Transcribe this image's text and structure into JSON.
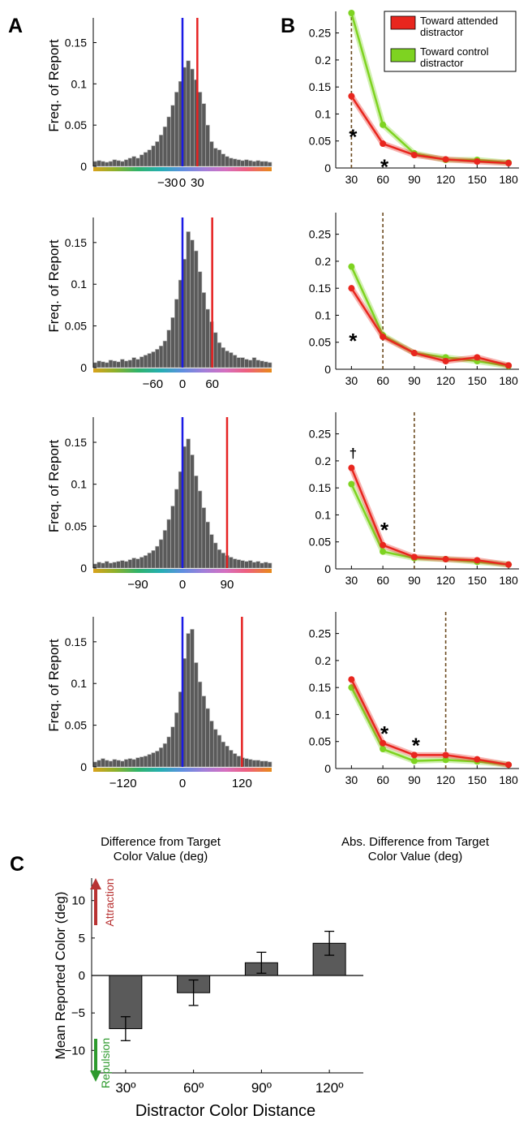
{
  "panels": {
    "A": {
      "letter": "A",
      "ylabel": "Freq. of Report",
      "xlabel_line1": "Difference from Target",
      "xlabel_line2": "Color Value (deg)",
      "yticks": [
        0,
        0.05,
        0.1,
        0.15
      ],
      "ytick_labels": [
        "0",
        "0.05",
        "0.1",
        "0.15"
      ],
      "colors": {
        "bar": "#5a5a5a",
        "target_line": "#1a1ae6",
        "distractor_line": "#e62222"
      }
    },
    "B": {
      "letter": "B",
      "xlabel_line1": "Abs. Difference from Target",
      "xlabel_line2": "Color Value (deg)",
      "xticks": [
        30,
        60,
        90,
        120,
        150,
        180
      ],
      "xtick_labels": [
        "30",
        "60",
        "90",
        "120",
        "150",
        "180"
      ],
      "yticks": [
        0,
        0.05,
        0.1,
        0.15,
        0.2,
        0.25
      ],
      "ytick_labels": [
        "0",
        "0.05",
        "0.1",
        "0.15",
        "0.2",
        "0.25"
      ],
      "legend": {
        "attended_line1": "Toward attended",
        "attended_line2": "distractor",
        "control_line1": "Toward control",
        "control_line2": "distractor"
      },
      "colors": {
        "attended": "#e8261e",
        "control": "#7ed321",
        "dashed": "#6b4a1f"
      }
    },
    "C": {
      "letter": "C",
      "ylabel": "Mean Reported Color (deg)",
      "xlabel": "Distractor Color Distance",
      "attraction_label": "Attraction",
      "repulsion_label": "Repulsion",
      "yticks": [
        -10,
        -5,
        0,
        5,
        10
      ],
      "ytick_labels": [
        "−10",
        "−5",
        "0",
        "5",
        "10"
      ],
      "colors": {
        "bar": "#5a5a5a",
        "attraction": "#b83232",
        "repulsion": "#2e9a2e"
      }
    }
  },
  "chart_data": [
    {
      "type": "bar",
      "panel": "A",
      "row": 1,
      "distance": 30,
      "xtick_labels": [
        "−30",
        "0",
        "30"
      ],
      "xlim": [
        -180,
        180
      ],
      "ylim": [
        0,
        0.18
      ],
      "target_line": 0,
      "distractor_line": 30,
      "values": [
        0.006,
        0.007,
        0.006,
        0.005,
        0.006,
        0.008,
        0.007,
        0.006,
        0.008,
        0.01,
        0.012,
        0.01,
        0.014,
        0.017,
        0.02,
        0.025,
        0.03,
        0.038,
        0.048,
        0.06,
        0.074,
        0.09,
        0.103,
        0.12,
        0.128,
        0.118,
        0.105,
        0.09,
        0.076,
        0.05,
        0.03,
        0.022,
        0.02,
        0.015,
        0.012,
        0.01,
        0.009,
        0.008,
        0.007,
        0.008,
        0.007,
        0.006,
        0.007,
        0.006,
        0.006,
        0.005
      ]
    },
    {
      "type": "bar",
      "panel": "A",
      "row": 2,
      "distance": 60,
      "xtick_labels": [
        "−60",
        "0",
        "60"
      ],
      "xlim": [
        -180,
        180
      ],
      "ylim": [
        0,
        0.18
      ],
      "target_line": 0,
      "distractor_line": 60,
      "values": [
        0.006,
        0.008,
        0.007,
        0.006,
        0.009,
        0.008,
        0.007,
        0.01,
        0.008,
        0.009,
        0.012,
        0.01,
        0.013,
        0.015,
        0.017,
        0.019,
        0.022,
        0.026,
        0.032,
        0.045,
        0.06,
        0.082,
        0.105,
        0.13,
        0.163,
        0.153,
        0.14,
        0.115,
        0.09,
        0.07,
        0.055,
        0.042,
        0.03,
        0.024,
        0.02,
        0.018,
        0.015,
        0.012,
        0.012,
        0.01,
        0.009,
        0.012,
        0.009,
        0.008,
        0.007,
        0.006
      ]
    },
    {
      "type": "bar",
      "panel": "A",
      "row": 3,
      "distance": 90,
      "xtick_labels": [
        "−90",
        "0",
        "90"
      ],
      "xlim": [
        -180,
        180
      ],
      "ylim": [
        0,
        0.18
      ],
      "target_line": 0,
      "distractor_line": 90,
      "values": [
        0.005,
        0.007,
        0.006,
        0.008,
        0.006,
        0.007,
        0.008,
        0.009,
        0.008,
        0.01,
        0.012,
        0.011,
        0.013,
        0.015,
        0.018,
        0.021,
        0.026,
        0.034,
        0.045,
        0.058,
        0.074,
        0.094,
        0.115,
        0.145,
        0.154,
        0.135,
        0.11,
        0.092,
        0.072,
        0.055,
        0.04,
        0.03,
        0.022,
        0.018,
        0.015,
        0.013,
        0.011,
        0.01,
        0.009,
        0.008,
        0.009,
        0.007,
        0.008,
        0.006,
        0.007,
        0.006
      ]
    },
    {
      "type": "bar",
      "panel": "A",
      "row": 4,
      "distance": 120,
      "xtick_labels": [
        "−120",
        "0",
        "120"
      ],
      "xlim": [
        -180,
        180
      ],
      "ylim": [
        0,
        0.18
      ],
      "target_line": 0,
      "distractor_line": 120,
      "values": [
        0.006,
        0.008,
        0.01,
        0.008,
        0.007,
        0.009,
        0.008,
        0.007,
        0.009,
        0.01,
        0.009,
        0.011,
        0.012,
        0.013,
        0.015,
        0.017,
        0.019,
        0.023,
        0.028,
        0.036,
        0.048,
        0.065,
        0.09,
        0.13,
        0.16,
        0.165,
        0.125,
        0.102,
        0.085,
        0.07,
        0.055,
        0.045,
        0.038,
        0.03,
        0.025,
        0.02,
        0.016,
        0.013,
        0.011,
        0.01,
        0.009,
        0.008,
        0.008,
        0.007,
        0.007,
        0.006
      ]
    },
    {
      "type": "line",
      "panel": "B",
      "row": 1,
      "distance": 30,
      "x": [
        30,
        60,
        90,
        120,
        150,
        180
      ],
      "xlim": [
        15,
        190
      ],
      "ylim": [
        0,
        0.29
      ],
      "dashed_line": 30,
      "series": [
        {
          "name": "Toward attended distractor",
          "values": [
            0.133,
            0.045,
            0.024,
            0.016,
            0.012,
            0.009
          ]
        },
        {
          "name": "Toward control distractor",
          "values": [
            0.287,
            0.08,
            0.027,
            0.015,
            0.015,
            0.01
          ]
        }
      ],
      "annotations": [
        {
          "text": "*",
          "x": 30,
          "y": 0.065
        },
        {
          "text": "*",
          "x": 60,
          "y": 0.01
        }
      ]
    },
    {
      "type": "line",
      "panel": "B",
      "row": 2,
      "distance": 60,
      "x": [
        30,
        60,
        90,
        120,
        150,
        180
      ],
      "xlim": [
        15,
        190
      ],
      "ylim": [
        0,
        0.29
      ],
      "dashed_line": 60,
      "series": [
        {
          "name": "Toward attended distractor",
          "values": [
            0.15,
            0.06,
            0.03,
            0.015,
            0.022,
            0.007
          ]
        },
        {
          "name": "Toward control distractor",
          "values": [
            0.19,
            0.063,
            0.03,
            0.022,
            0.015,
            0.006
          ]
        }
      ],
      "annotations": [
        {
          "text": "*",
          "x": 30,
          "y": 0.06
        }
      ]
    },
    {
      "type": "line",
      "panel": "B",
      "row": 3,
      "distance": 90,
      "x": [
        30,
        60,
        90,
        120,
        150,
        180
      ],
      "xlim": [
        15,
        190
      ],
      "ylim": [
        0,
        0.29
      ],
      "dashed_line": 90,
      "series": [
        {
          "name": "Toward attended distractor",
          "values": [
            0.187,
            0.044,
            0.022,
            0.018,
            0.016,
            0.008
          ]
        },
        {
          "name": "Toward control distractor",
          "values": [
            0.157,
            0.032,
            0.02,
            0.018,
            0.013,
            0.008
          ]
        }
      ],
      "annotations": [
        {
          "text": "†",
          "x": 30,
          "y": 0.215
        },
        {
          "text": "*",
          "x": 60,
          "y": 0.08
        }
      ]
    },
    {
      "type": "line",
      "panel": "B",
      "row": 4,
      "distance": 120,
      "x": [
        30,
        60,
        90,
        120,
        150,
        180
      ],
      "xlim": [
        15,
        190
      ],
      "ylim": [
        0,
        0.29
      ],
      "dashed_line": 120,
      "series": [
        {
          "name": "Toward attended distractor",
          "values": [
            0.165,
            0.047,
            0.025,
            0.025,
            0.017,
            0.007
          ]
        },
        {
          "name": "Toward control distractor",
          "values": [
            0.15,
            0.036,
            0.014,
            0.016,
            0.013,
            0.007
          ]
        }
      ],
      "annotations": [
        {
          "text": "*",
          "x": 60,
          "y": 0.072
        },
        {
          "text": "*",
          "x": 90,
          "y": 0.05
        }
      ]
    },
    {
      "type": "bar",
      "panel": "C",
      "categories": [
        "30º",
        "60º",
        "90º",
        "120º"
      ],
      "values": [
        -7.1,
        -2.3,
        1.7,
        4.3
      ],
      "errors": [
        1.6,
        1.7,
        1.4,
        1.6
      ],
      "ylim": [
        -13,
        13
      ],
      "ylabel": "Mean Reported Color (deg)",
      "xlabel": "Distractor Color Distance"
    }
  ]
}
